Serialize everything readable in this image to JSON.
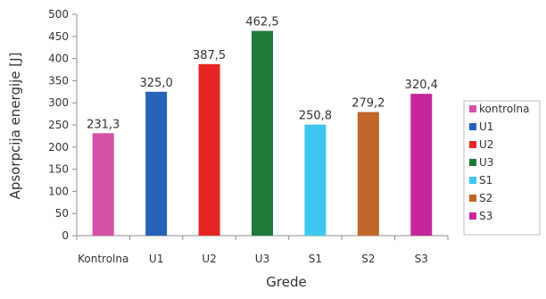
{
  "chart_data": {
    "type": "bar",
    "categories": [
      "Kontrolna",
      "U1",
      "U2",
      "U3",
      "S1",
      "S2",
      "S3"
    ],
    "values": [
      231.3,
      325.0,
      387.5,
      462.5,
      250.8,
      279.2,
      320.4
    ],
    "data_labels": [
      "231,3",
      "325,0",
      "387,5",
      "462,5",
      "250,8",
      "279,2",
      "320,4"
    ],
    "colors": [
      "#d64fa8",
      "#2563b8",
      "#e62525",
      "#1f7a3a",
      "#3fc6ee",
      "#c0662a",
      "#c5279a"
    ],
    "legend": [
      "kontrolna",
      "U1",
      "U2",
      "U3",
      "S1",
      "S2",
      "S3"
    ],
    "legend_placement": "right",
    "xlabel": "Grede",
    "ylabel": "Apsorpcija energije [J]",
    "ylim": [
      0,
      500
    ],
    "yticks": [
      0,
      50,
      100,
      150,
      200,
      250,
      300,
      350,
      400,
      450,
      500
    ],
    "grid": false
  }
}
